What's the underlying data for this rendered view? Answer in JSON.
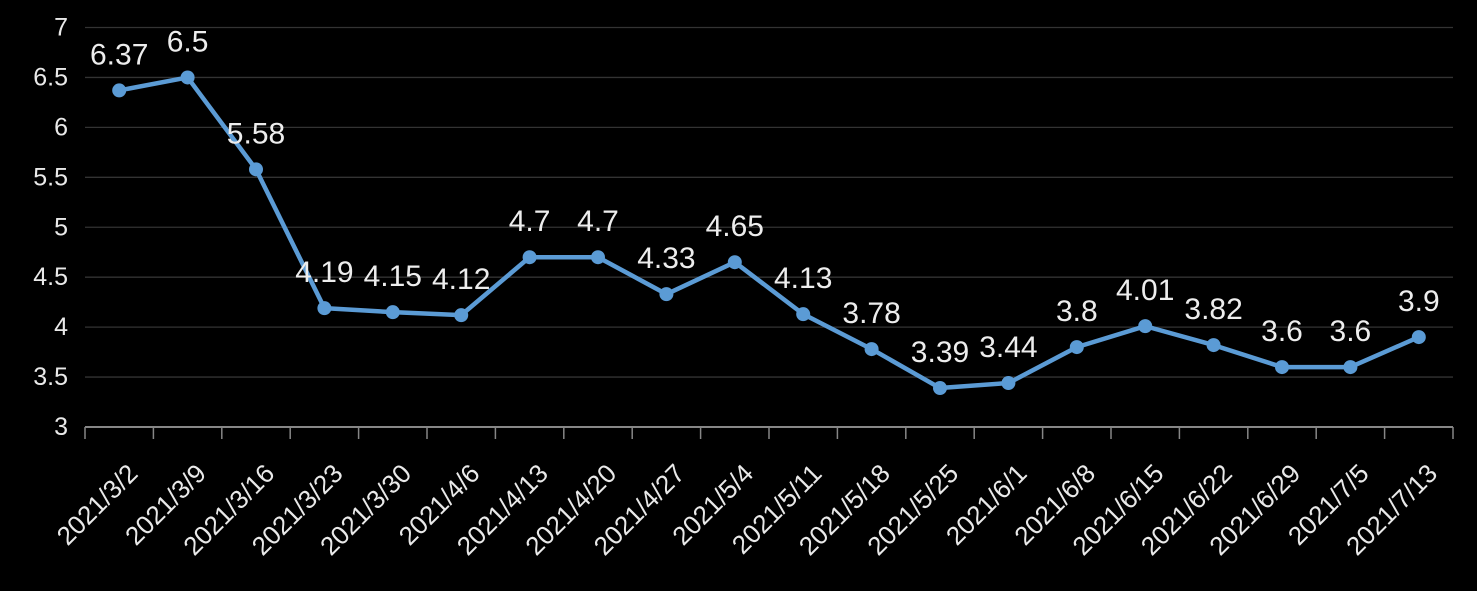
{
  "chart_data": {
    "type": "line",
    "title": "",
    "xlabel": "",
    "ylabel": "",
    "categories": [
      "2021/3/2",
      "2021/3/9",
      "2021/3/16",
      "2021/3/23",
      "2021/3/30",
      "2021/4/6",
      "2021/4/13",
      "2021/4/20",
      "2021/4/27",
      "2021/5/4",
      "2021/5/11",
      "2021/5/18",
      "2021/5/25",
      "2021/6/1",
      "2021/6/8",
      "2021/6/15",
      "2021/6/22",
      "2021/6/29",
      "2021/7/5",
      "2021/7/13"
    ],
    "series": [
      {
        "name": "value",
        "values": [
          6.37,
          6.5,
          5.58,
          4.19,
          4.15,
          4.12,
          4.7,
          4.7,
          4.33,
          4.65,
          4.13,
          3.78,
          3.39,
          3.44,
          3.8,
          4.01,
          3.82,
          3.6,
          3.6,
          3.9
        ],
        "data_labels": [
          "6.37",
          "6.5",
          "5.58",
          "4.19",
          "4.15",
          "4.12",
          "4.7",
          "4.7",
          "4.33",
          "4.65",
          "4.13",
          "3.78",
          "3.39",
          "3.44",
          "3.8",
          "4.01",
          "3.82",
          "3.6",
          "3.6",
          "3.9"
        ]
      }
    ],
    "ylim": [
      3,
      7
    ],
    "y_ticks": [
      3,
      3.5,
      4,
      4.5,
      5,
      5.5,
      6,
      6.5,
      7
    ],
    "y_tick_labels": [
      "3",
      "3.5",
      "4",
      "4.5",
      "5",
      "5.5",
      "6",
      "6.5",
      "7"
    ],
    "x_label_rotation_deg": -45,
    "grid": true,
    "legend": false,
    "marker_shape": "circle",
    "colors": {
      "background": "#000000",
      "line": "#5B9BD5",
      "marker": "#5B9BD5",
      "gridline": "#333333",
      "axis": "#868686",
      "tick": "#868686",
      "y_label_text": "#E9E9E9",
      "x_label_text": "#E9E9E9",
      "data_label_text": "#EDEDED"
    }
  }
}
